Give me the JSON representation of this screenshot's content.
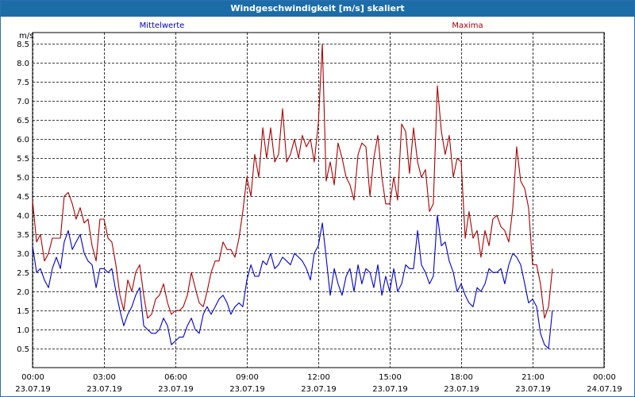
{
  "window": {
    "title": "Windgeschwindigkeit [m/s] skaliert"
  },
  "colors": {
    "titlebar": "#1c6ca8",
    "mean": "#0000cc",
    "max": "#aa0000"
  },
  "chart_data": {
    "type": "line",
    "title": "Windgeschwindigkeit [m/s] skaliert",
    "ylabel": "m/s",
    "xlabel": "",
    "ylim": [
      0,
      8.8
    ],
    "yticks": [
      "0.5",
      "1.0",
      "1.5",
      "2.0",
      "2.5",
      "3.0",
      "3.5",
      "4.0",
      "4.5",
      "5.0",
      "5.5",
      "6.0",
      "6.5",
      "7.0",
      "7.5",
      "8.0",
      "8.5"
    ],
    "xlim": [
      0,
      24
    ],
    "xticks": [
      {
        "time": "00:00",
        "date": "23.07.19"
      },
      {
        "time": "03:00",
        "date": "23.07.19"
      },
      {
        "time": "06:00",
        "date": "23.07.19"
      },
      {
        "time": "09:00",
        "date": "23.07.19"
      },
      {
        "time": "12:00",
        "date": "23.07.19"
      },
      {
        "time": "15:00",
        "date": "23.07.19"
      },
      {
        "time": "18:00",
        "date": "23.07.19"
      },
      {
        "time": "21:00",
        "date": "23.07.19"
      },
      {
        "time": "00:00",
        "date": "24.07.19"
      }
    ],
    "grid": true,
    "series": [
      {
        "name": "Mittelwerte",
        "color": "#0000cc",
        "points": [
          [
            0.0,
            3.2
          ],
          [
            0.17,
            2.5
          ],
          [
            0.33,
            2.6
          ],
          [
            0.5,
            2.3
          ],
          [
            0.67,
            2.1
          ],
          [
            0.83,
            2.6
          ],
          [
            1.0,
            2.9
          ],
          [
            1.17,
            2.6
          ],
          [
            1.33,
            3.3
          ],
          [
            1.5,
            3.6
          ],
          [
            1.67,
            3.1
          ],
          [
            1.83,
            3.3
          ],
          [
            2.0,
            3.5
          ],
          [
            2.17,
            3.0
          ],
          [
            2.33,
            2.8
          ],
          [
            2.5,
            2.7
          ],
          [
            2.67,
            2.1
          ],
          [
            2.83,
            2.6
          ],
          [
            3.0,
            2.6
          ],
          [
            3.17,
            2.5
          ],
          [
            3.33,
            2.6
          ],
          [
            3.5,
            2.0
          ],
          [
            3.67,
            1.5
          ],
          [
            3.83,
            1.1
          ],
          [
            4.0,
            1.4
          ],
          [
            4.17,
            1.6
          ],
          [
            4.33,
            1.9
          ],
          [
            4.5,
            2.1
          ],
          [
            4.67,
            1.1
          ],
          [
            4.83,
            1.0
          ],
          [
            5.0,
            0.9
          ],
          [
            5.17,
            0.9
          ],
          [
            5.33,
            1.0
          ],
          [
            5.5,
            1.3
          ],
          [
            5.67,
            1.1
          ],
          [
            5.83,
            0.6
          ],
          [
            6.0,
            0.7
          ],
          [
            6.17,
            0.8
          ],
          [
            6.33,
            0.8
          ],
          [
            6.5,
            1.1
          ],
          [
            6.67,
            1.3
          ],
          [
            6.83,
            1.0
          ],
          [
            7.0,
            0.9
          ],
          [
            7.17,
            1.4
          ],
          [
            7.33,
            1.6
          ],
          [
            7.5,
            1.4
          ],
          [
            7.67,
            1.6
          ],
          [
            7.83,
            1.8
          ],
          [
            8.0,
            1.9
          ],
          [
            8.17,
            1.7
          ],
          [
            8.33,
            1.4
          ],
          [
            8.5,
            1.6
          ],
          [
            8.67,
            1.7
          ],
          [
            8.83,
            1.6
          ],
          [
            9.0,
            2.3
          ],
          [
            9.17,
            2.7
          ],
          [
            9.33,
            2.4
          ],
          [
            9.5,
            2.4
          ],
          [
            9.67,
            2.8
          ],
          [
            9.83,
            2.7
          ],
          [
            10.0,
            3.0
          ],
          [
            10.17,
            2.6
          ],
          [
            10.33,
            2.7
          ],
          [
            10.5,
            2.9
          ],
          [
            10.67,
            2.8
          ],
          [
            10.83,
            2.7
          ],
          [
            11.0,
            3.0
          ],
          [
            11.17,
            2.9
          ],
          [
            11.33,
            2.8
          ],
          [
            11.5,
            2.6
          ],
          [
            11.67,
            2.3
          ],
          [
            11.83,
            3.0
          ],
          [
            12.0,
            3.2
          ],
          [
            12.17,
            3.8
          ],
          [
            12.33,
            2.9
          ],
          [
            12.5,
            1.9
          ],
          [
            12.67,
            2.6
          ],
          [
            12.83,
            2.2
          ],
          [
            13.0,
            1.9
          ],
          [
            13.17,
            2.4
          ],
          [
            13.33,
            2.6
          ],
          [
            13.5,
            2.0
          ],
          [
            13.67,
            2.7
          ],
          [
            13.83,
            2.2
          ],
          [
            14.0,
            2.6
          ],
          [
            14.17,
            2.5
          ],
          [
            14.33,
            2.1
          ],
          [
            14.5,
            2.7
          ],
          [
            14.67,
            1.9
          ],
          [
            14.83,
            2.4
          ],
          [
            15.0,
            2.0
          ],
          [
            15.17,
            2.6
          ],
          [
            15.33,
            2.0
          ],
          [
            15.5,
            2.2
          ],
          [
            15.67,
            2.7
          ],
          [
            15.83,
            2.6
          ],
          [
            16.0,
            2.6
          ],
          [
            16.17,
            3.6
          ],
          [
            16.33,
            2.7
          ],
          [
            16.5,
            2.5
          ],
          [
            16.67,
            2.2
          ],
          [
            16.83,
            2.4
          ],
          [
            17.0,
            4.0
          ],
          [
            17.17,
            3.2
          ],
          [
            17.33,
            3.3
          ],
          [
            17.5,
            2.8
          ],
          [
            17.67,
            2.5
          ],
          [
            17.83,
            2.0
          ],
          [
            18.0,
            2.2
          ],
          [
            18.17,
            1.9
          ],
          [
            18.33,
            1.7
          ],
          [
            18.5,
            1.6
          ],
          [
            18.67,
            2.1
          ],
          [
            18.83,
            2.0
          ],
          [
            19.0,
            2.2
          ],
          [
            19.17,
            2.6
          ],
          [
            19.33,
            2.5
          ],
          [
            19.5,
            2.5
          ],
          [
            19.67,
            2.6
          ],
          [
            19.83,
            2.2
          ],
          [
            20.0,
            2.7
          ],
          [
            20.17,
            3.0
          ],
          [
            20.33,
            2.9
          ],
          [
            20.5,
            2.7
          ],
          [
            20.67,
            2.2
          ],
          [
            20.83,
            1.7
          ],
          [
            21.0,
            1.8
          ],
          [
            21.17,
            1.6
          ],
          [
            21.33,
            0.9
          ],
          [
            21.5,
            0.6
          ],
          [
            21.67,
            0.5
          ],
          [
            21.83,
            1.5
          ]
        ]
      },
      {
        "name": "Maxima",
        "color": "#aa0000",
        "points": [
          [
            0.0,
            4.4
          ],
          [
            0.17,
            3.3
          ],
          [
            0.33,
            3.5
          ],
          [
            0.5,
            2.8
          ],
          [
            0.67,
            3.0
          ],
          [
            0.83,
            3.4
          ],
          [
            1.0,
            3.4
          ],
          [
            1.17,
            3.4
          ],
          [
            1.33,
            4.5
          ],
          [
            1.5,
            4.6
          ],
          [
            1.67,
            4.3
          ],
          [
            1.83,
            3.9
          ],
          [
            2.0,
            4.2
          ],
          [
            2.17,
            3.8
          ],
          [
            2.33,
            3.9
          ],
          [
            2.5,
            3.2
          ],
          [
            2.67,
            2.8
          ],
          [
            2.83,
            3.9
          ],
          [
            3.0,
            3.9
          ],
          [
            3.17,
            3.4
          ],
          [
            3.33,
            3.3
          ],
          [
            3.5,
            2.7
          ],
          [
            3.67,
            1.9
          ],
          [
            3.83,
            1.5
          ],
          [
            4.0,
            2.3
          ],
          [
            4.17,
            2.0
          ],
          [
            4.33,
            2.5
          ],
          [
            4.5,
            2.7
          ],
          [
            4.67,
            1.9
          ],
          [
            4.83,
            1.3
          ],
          [
            5.0,
            1.4
          ],
          [
            5.17,
            1.8
          ],
          [
            5.33,
            1.9
          ],
          [
            5.5,
            2.2
          ],
          [
            5.67,
            1.7
          ],
          [
            5.83,
            1.4
          ],
          [
            6.0,
            1.5
          ],
          [
            6.17,
            1.5
          ],
          [
            6.33,
            1.6
          ],
          [
            6.5,
            1.9
          ],
          [
            6.67,
            2.5
          ],
          [
            6.83,
            2.1
          ],
          [
            7.0,
            1.7
          ],
          [
            7.17,
            1.6
          ],
          [
            7.33,
            2.0
          ],
          [
            7.5,
            2.5
          ],
          [
            7.67,
            2.8
          ],
          [
            7.83,
            2.8
          ],
          [
            8.0,
            3.3
          ],
          [
            8.17,
            3.1
          ],
          [
            8.33,
            3.1
          ],
          [
            8.5,
            2.9
          ],
          [
            8.67,
            3.4
          ],
          [
            8.83,
            4.1
          ],
          [
            9.0,
            5.0
          ],
          [
            9.17,
            4.5
          ],
          [
            9.33,
            5.6
          ],
          [
            9.5,
            5.0
          ],
          [
            9.67,
            6.3
          ],
          [
            9.83,
            5.5
          ],
          [
            10.0,
            6.3
          ],
          [
            10.17,
            5.4
          ],
          [
            10.33,
            5.6
          ],
          [
            10.5,
            6.8
          ],
          [
            10.67,
            5.4
          ],
          [
            10.83,
            5.6
          ],
          [
            11.0,
            6.0
          ],
          [
            11.17,
            5.5
          ],
          [
            11.33,
            6.1
          ],
          [
            11.5,
            5.8
          ],
          [
            11.67,
            6.0
          ],
          [
            11.83,
            5.4
          ],
          [
            12.0,
            6.4
          ],
          [
            12.17,
            8.5
          ],
          [
            12.33,
            4.9
          ],
          [
            12.5,
            5.4
          ],
          [
            12.67,
            4.8
          ],
          [
            12.83,
            5.9
          ],
          [
            13.0,
            5.5
          ],
          [
            13.17,
            5.0
          ],
          [
            13.33,
            4.8
          ],
          [
            13.5,
            4.4
          ],
          [
            13.67,
            5.6
          ],
          [
            13.83,
            5.9
          ],
          [
            14.0,
            5.8
          ],
          [
            14.17,
            4.5
          ],
          [
            14.33,
            5.5
          ],
          [
            14.5,
            6.1
          ],
          [
            14.67,
            5.0
          ],
          [
            14.83,
            4.3
          ],
          [
            15.0,
            4.3
          ],
          [
            15.17,
            5.0
          ],
          [
            15.33,
            4.4
          ],
          [
            15.5,
            6.4
          ],
          [
            15.67,
            6.2
          ],
          [
            15.83,
            5.1
          ],
          [
            16.0,
            6.3
          ],
          [
            16.17,
            5.4
          ],
          [
            16.33,
            5.0
          ],
          [
            16.5,
            5.2
          ],
          [
            16.67,
            4.1
          ],
          [
            16.83,
            4.3
          ],
          [
            17.0,
            7.4
          ],
          [
            17.17,
            6.2
          ],
          [
            17.33,
            5.6
          ],
          [
            17.5,
            6.1
          ],
          [
            17.67,
            5.0
          ],
          [
            17.83,
            5.5
          ],
          [
            18.0,
            5.4
          ],
          [
            18.17,
            3.4
          ],
          [
            18.33,
            4.1
          ],
          [
            18.5,
            3.4
          ],
          [
            18.67,
            3.6
          ],
          [
            18.83,
            2.9
          ],
          [
            19.0,
            3.6
          ],
          [
            19.17,
            3.2
          ],
          [
            19.33,
            3.9
          ],
          [
            19.5,
            4.0
          ],
          [
            19.67,
            3.7
          ],
          [
            19.83,
            3.6
          ],
          [
            20.0,
            3.3
          ],
          [
            20.17,
            4.2
          ],
          [
            20.33,
            5.8
          ],
          [
            20.5,
            4.9
          ],
          [
            20.67,
            4.7
          ],
          [
            20.83,
            4.2
          ],
          [
            21.0,
            2.7
          ],
          [
            21.17,
            2.7
          ],
          [
            21.33,
            2.2
          ],
          [
            21.5,
            1.3
          ],
          [
            21.67,
            1.6
          ],
          [
            21.83,
            2.6
          ]
        ]
      }
    ]
  }
}
